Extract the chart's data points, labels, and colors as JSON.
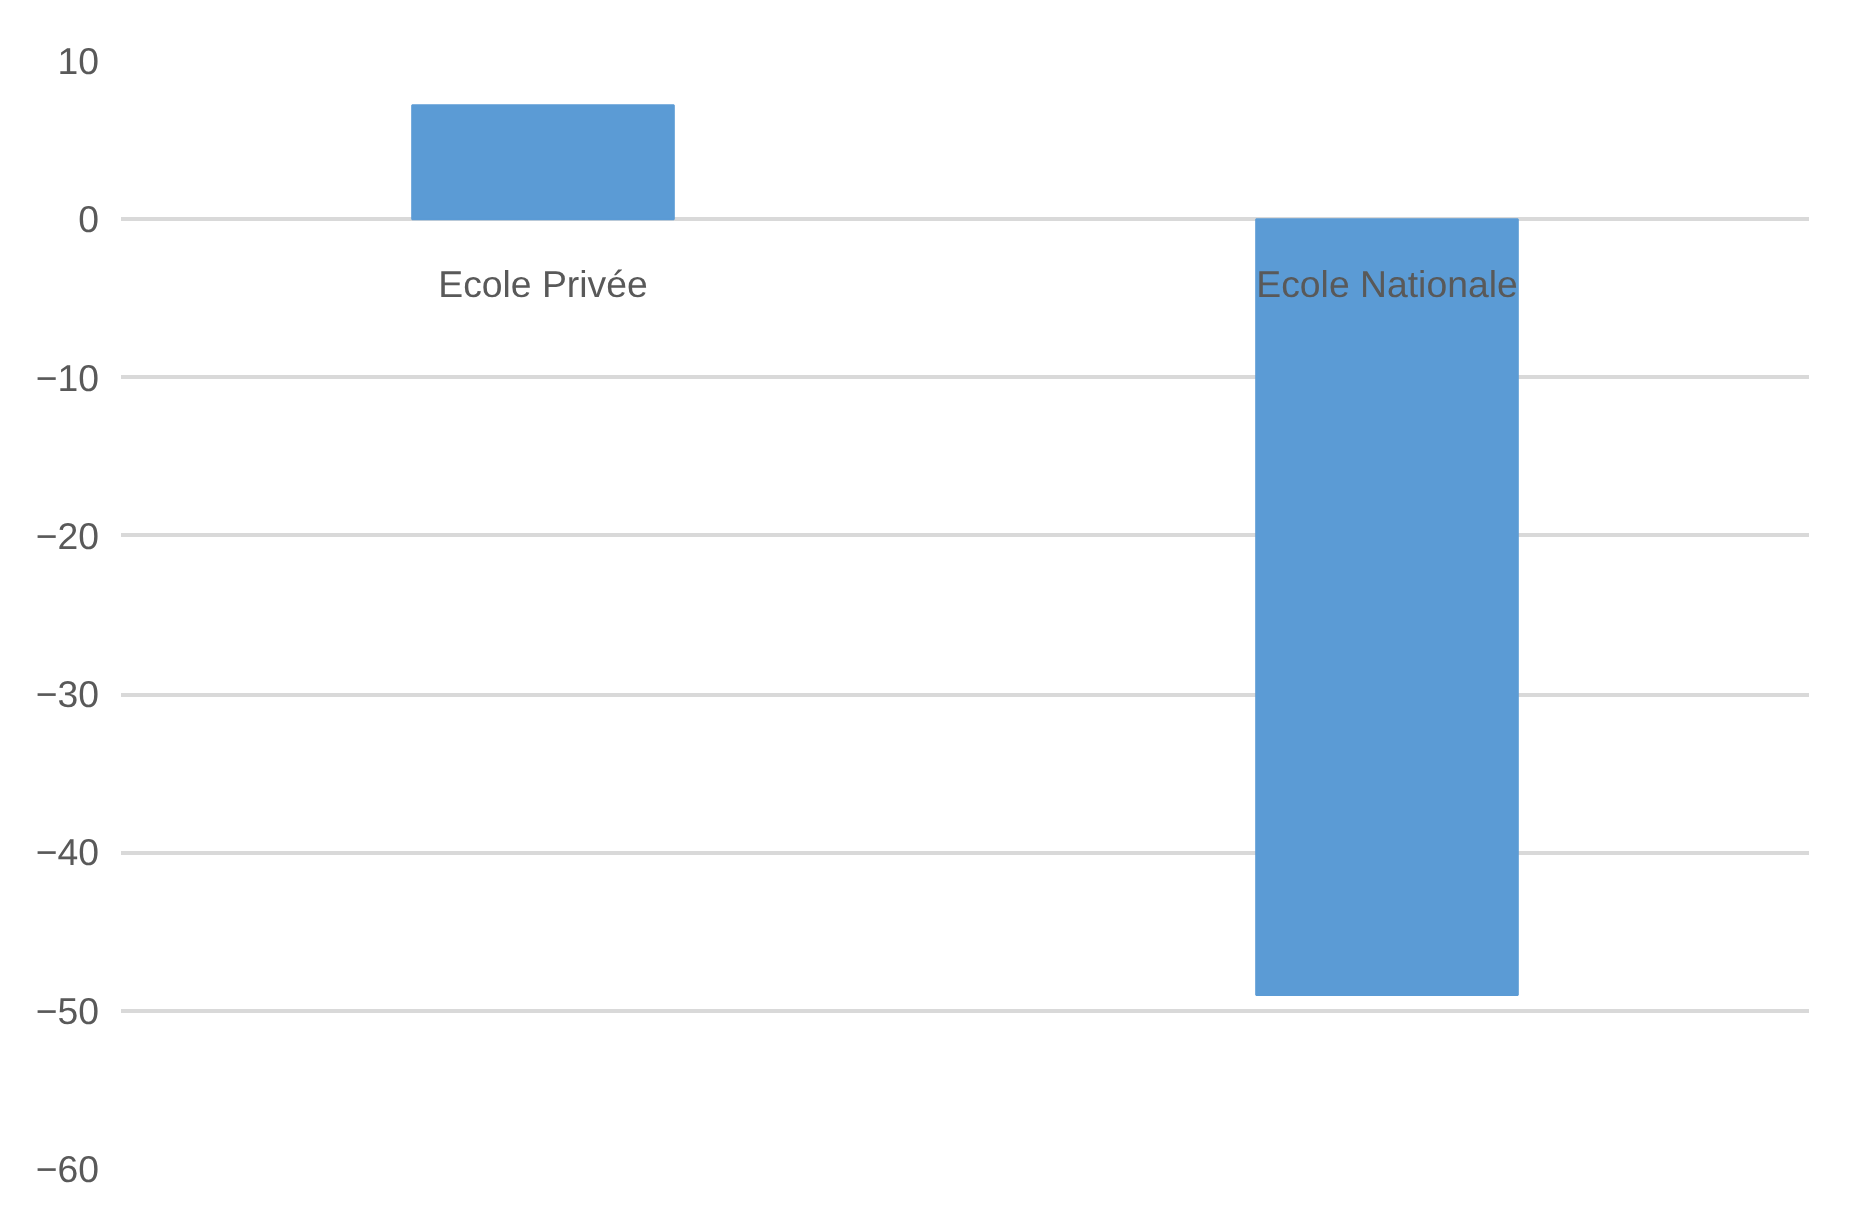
{
  "chart_data": {
    "type": "bar",
    "categories": [
      "Ecole Privée",
      "Ecole Nationale"
    ],
    "values": [
      7.2,
      -49
    ],
    "color": "#5b9bd5",
    "ylim": [
      -60,
      10
    ],
    "yticks": [
      -60,
      -50,
      -40,
      -30,
      -20,
      -10,
      0,
      10
    ],
    "grid": "y"
  }
}
